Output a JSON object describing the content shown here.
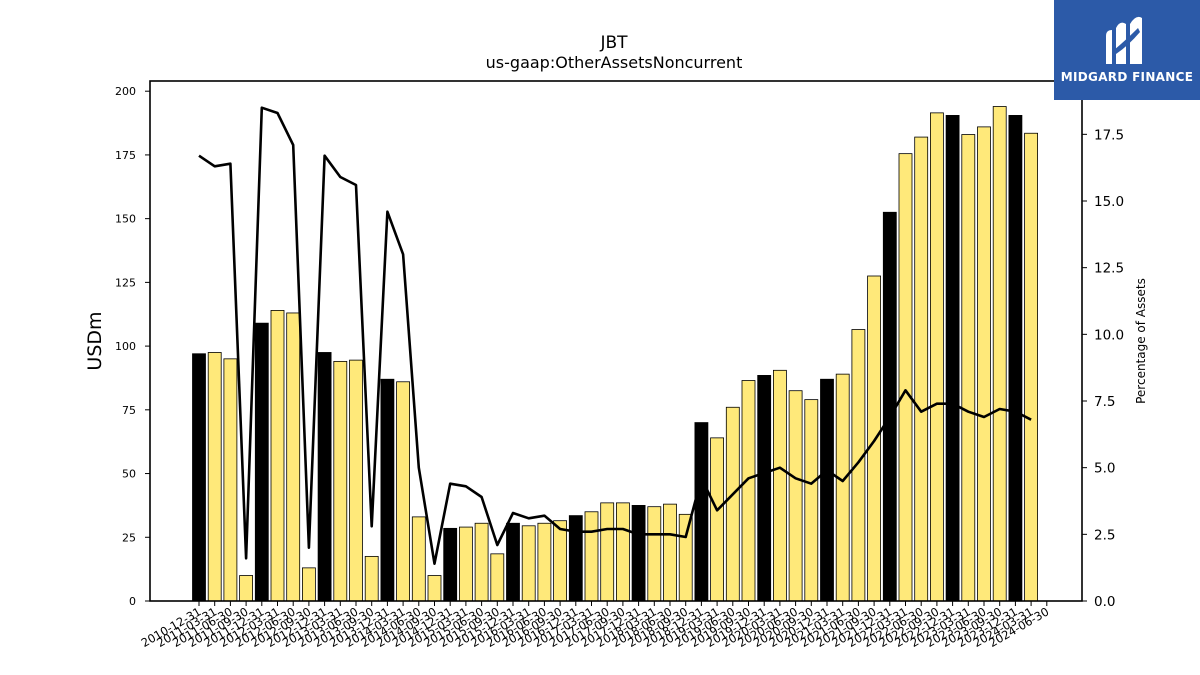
{
  "chart_data": {
    "type": "bar",
    "title": "JBT",
    "subtitle": "us-gaap:OtherAssetsNoncurrent",
    "ylabel": "USDm",
    "y2label": "Percentage of Assets",
    "ylim": [
      0,
      204
    ],
    "y2lim": [
      0,
      19.5
    ],
    "yticks": [
      0,
      25,
      50,
      75,
      100,
      125,
      150,
      175,
      200
    ],
    "y2ticks": [
      "0.0",
      "2.5",
      "5.0",
      "7.5",
      "10.0",
      "12.5",
      "15.0",
      "17.5"
    ],
    "grid": false,
    "colors": {
      "annual_bar": "#000000",
      "quarter_bar": "#ffe97a",
      "bar_edge": "#000000",
      "line": "#000000"
    },
    "categories": [
      "2010-12-31",
      "2011-03-31",
      "2011-06-30",
      "2011-09-30",
      "2011-12-31",
      "2012-03-31",
      "2012-06-30",
      "2012-09-30",
      "2012-12-31",
      "2013-03-31",
      "2013-06-30",
      "2013-09-30",
      "2013-12-31",
      "2014-03-31",
      "2014-06-30",
      "2014-09-30",
      "2014-12-31",
      "2015-03-31",
      "2015-06-30",
      "2015-09-30",
      "2015-12-31",
      "2016-03-31",
      "2016-06-30",
      "2016-09-30",
      "2016-12-31",
      "2017-03-31",
      "2017-06-30",
      "2017-09-30",
      "2017-12-31",
      "2018-03-31",
      "2018-06-30",
      "2018-09-30",
      "2018-12-31",
      "2019-03-31",
      "2019-06-30",
      "2019-09-30",
      "2019-12-31",
      "2020-03-31",
      "2020-06-30",
      "2020-09-30",
      "2020-12-31",
      "2021-03-31",
      "2021-06-30",
      "2021-09-30",
      "2021-12-31",
      "2022-03-31",
      "2022-06-30",
      "2022-09-30",
      "2022-12-31",
      "2023-03-31",
      "2023-06-30",
      "2023-09-30",
      "2023-12-31",
      "2024-03-31",
      "2024-06-30"
    ],
    "series": [
      {
        "kind": "bar",
        "values": [
          97,
          97.5,
          95,
          10,
          109,
          114,
          113,
          13,
          97.5,
          94,
          94.5,
          17.5,
          87,
          86,
          33,
          10,
          28.5,
          29,
          30.5,
          18.5,
          30.5,
          29.5,
          30.5,
          31.5,
          33.5,
          35,
          38.5,
          38.5,
          37.5,
          37,
          38,
          34,
          70,
          64,
          76,
          86.5,
          88.5,
          90.5,
          82.5,
          79,
          87,
          89,
          106.5,
          127.5,
          152.5,
          175.5,
          182,
          191.5,
          190.5,
          183,
          186,
          194,
          190.5,
          183.5,
          0
        ],
        "annual": [
          true,
          false,
          false,
          false,
          true,
          false,
          false,
          false,
          true,
          false,
          false,
          false,
          true,
          false,
          false,
          false,
          true,
          false,
          false,
          false,
          true,
          false,
          false,
          false,
          true,
          false,
          false,
          false,
          true,
          false,
          false,
          false,
          true,
          false,
          false,
          false,
          true,
          false,
          false,
          false,
          true,
          false,
          false,
          false,
          true,
          false,
          false,
          false,
          true,
          false,
          false,
          false,
          true,
          false,
          false
        ]
      },
      {
        "kind": "line",
        "axis": "right",
        "values": [
          16.7,
          16.3,
          16.4,
          1.6,
          18.5,
          18.3,
          17.1,
          2.0,
          16.7,
          15.9,
          15.6,
          2.8,
          14.6,
          13.0,
          5.0,
          1.4,
          4.4,
          4.3,
          3.9,
          2.1,
          3.3,
          3.1,
          3.2,
          2.7,
          2.6,
          2.6,
          2.7,
          2.7,
          2.5,
          2.5,
          2.5,
          2.4,
          4.6,
          3.4,
          4.0,
          4.6,
          4.8,
          5.0,
          4.6,
          4.4,
          4.9,
          4.5,
          5.2,
          6.0,
          6.9,
          7.9,
          7.1,
          7.4,
          7.4,
          7.1,
          6.9,
          7.2,
          7.1,
          6.8,
          null
        ]
      }
    ]
  },
  "logo": {
    "text": "MIDGARD FINANCE"
  }
}
